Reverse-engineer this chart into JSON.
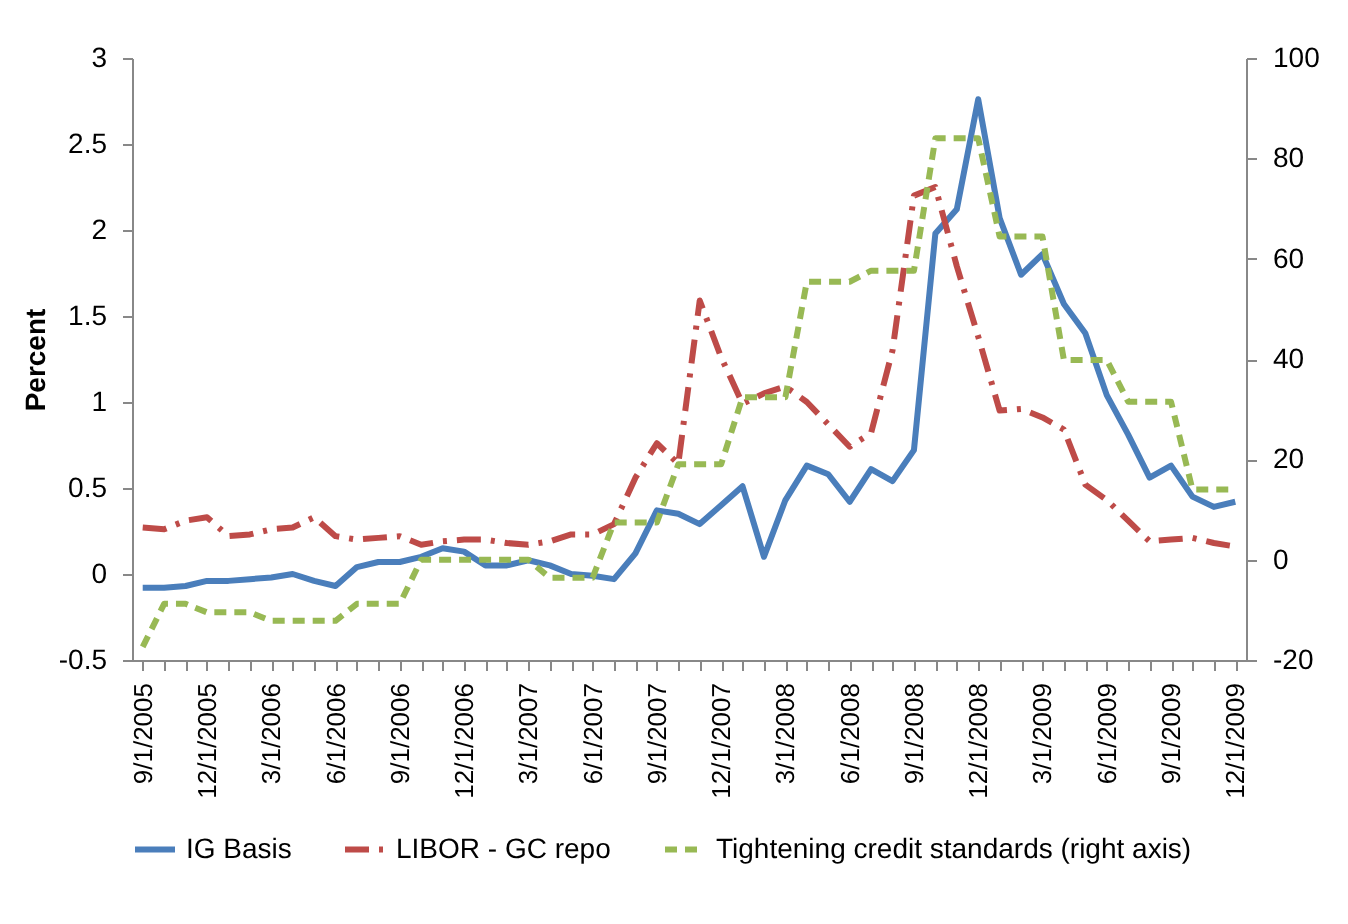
{
  "chart_data": {
    "type": "line",
    "ylabel": "Percent",
    "categories": [
      "9/1/2005",
      null,
      null,
      "12/1/2005",
      null,
      null,
      "3/1/2006",
      null,
      null,
      "6/1/2006",
      null,
      null,
      "9/1/2006",
      null,
      null,
      "12/1/2006",
      null,
      null,
      "3/1/2007",
      null,
      null,
      "6/1/2007",
      null,
      null,
      "9/1/2007",
      null,
      null,
      "12/1/2007",
      null,
      null,
      "3/1/2008",
      null,
      null,
      "6/1/2008",
      null,
      null,
      "9/1/2008",
      null,
      null,
      "12/1/2008",
      null,
      null,
      "3/1/2009",
      null,
      null,
      "6/1/2009",
      null,
      null,
      "9/1/2009",
      null,
      null,
      "12/1/2009"
    ],
    "series": [
      {
        "name": "IG Basis",
        "color": "#4a7ebb",
        "line_style": "solid",
        "values": [
          -0.08,
          -0.08,
          -0.07,
          -0.04,
          -0.04,
          -0.03,
          -0.02,
          0.0,
          -0.04,
          -0.07,
          0.04,
          0.07,
          0.07,
          0.1,
          0.15,
          0.13,
          0.05,
          0.05,
          0.08,
          0.05,
          0.0,
          -0.01,
          -0.03,
          0.12,
          0.37,
          0.35,
          0.29,
          0.4,
          0.51,
          0.1,
          0.43,
          0.63,
          0.58,
          0.42,
          0.61,
          0.54,
          0.72,
          1.98,
          2.12,
          2.76,
          2.07,
          1.74,
          1.86,
          1.57,
          1.4,
          1.04,
          0.81,
          0.56,
          0.63,
          0.45,
          0.39,
          0.42
        ]
      },
      {
        "name": "LIBOR - GC repo",
        "color": "#be4b48",
        "line_style": "dashdot",
        "values": [
          0.27,
          0.26,
          0.31,
          0.33,
          0.22,
          0.23,
          0.26,
          0.27,
          0.33,
          0.22,
          0.2,
          0.21,
          0.22,
          0.17,
          0.19,
          0.2,
          0.2,
          0.18,
          0.17,
          0.19,
          0.23,
          0.23,
          0.29,
          0.56,
          0.76,
          0.64,
          1.59,
          1.26,
          0.99,
          1.05,
          1.09,
          1.0,
          0.87,
          0.74,
          0.82,
          1.3,
          2.2,
          2.25,
          1.79,
          1.38,
          0.95,
          0.96,
          0.91,
          0.84,
          0.52,
          0.43,
          0.31,
          0.19,
          0.2,
          0.21,
          0.18,
          0.16
        ]
      },
      {
        "name": "Tightening credit standards (right axis)",
        "color": "#98b954",
        "line_style": "dashed",
        "axis": "y2",
        "values": [
          -17.4,
          -8.8,
          -8.8,
          -10.5,
          -10.5,
          -10.5,
          -12.2,
          -12.2,
          -12.2,
          -12.2,
          -8.8,
          -8.8,
          -8.8,
          0,
          0,
          0,
          0,
          0,
          0,
          -3.6,
          -3.6,
          -3.6,
          7.4,
          7.4,
          7.4,
          19,
          19,
          19,
          32.4,
          32.4,
          32.4,
          55.4,
          55.4,
          55.4,
          57.6,
          57.6,
          57.6,
          84,
          84,
          84,
          64.4,
          64.4,
          64.4,
          39.8,
          39.8,
          39.8,
          31.5,
          31.5,
          31.5,
          14,
          14,
          14
        ]
      }
    ],
    "ylim": [
      -0.5,
      3
    ],
    "yticks": [
      -0.5,
      0,
      0.5,
      1,
      1.5,
      2,
      2.5,
      3
    ],
    "y2lim": [
      -20,
      100
    ],
    "y2ticks": [
      -20,
      0,
      20,
      40,
      60,
      80,
      100
    ],
    "grid": false,
    "legend": "bottom"
  }
}
